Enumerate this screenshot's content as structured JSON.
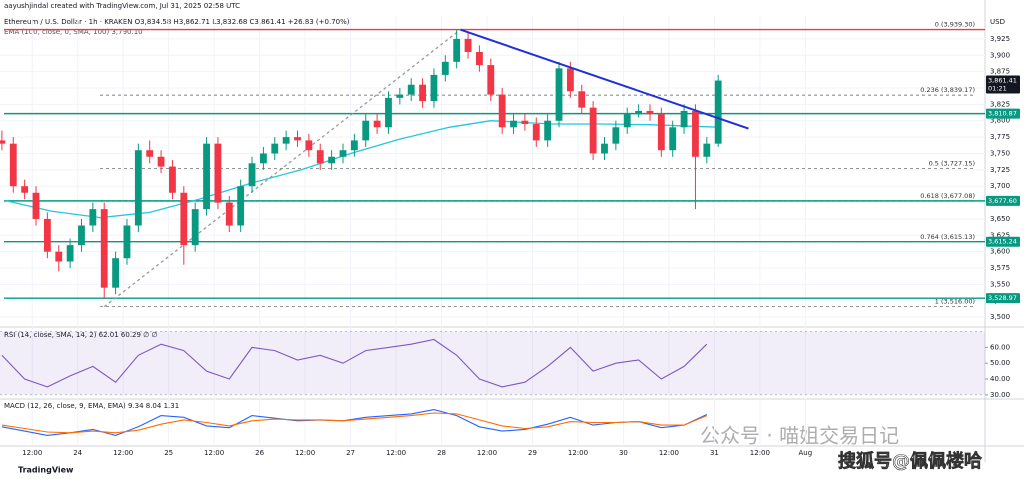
{
  "header": {
    "author_line": "aayushjindal created with TradingView.com, Jul 31, 2025 02:58 UTC",
    "symbol_line": "Ethereum / U.S. Dollar · 1h · KRAKEN  O3,834.58 H3,862.71 L3,832.68 C3,861.41 +26.83 (+0.70%)",
    "ema_line": "EMA (100, close, 0, SMA, 100)  3,790.10",
    "currency": "USD",
    "countdown": "01:21"
  },
  "chart_data": [
    {
      "type": "candlestick",
      "up_color": "#089981",
      "down_color": "#f23645",
      "x": [
        4,
        7,
        10,
        13,
        16,
        19,
        22,
        25,
        28,
        31,
        34,
        37,
        40,
        43,
        46,
        49,
        52,
        55,
        58,
        61,
        64,
        67,
        70,
        73,
        76,
        79,
        82,
        85,
        88,
        91,
        94,
        97,
        100,
        103,
        106,
        109,
        112,
        115,
        118,
        121,
        124,
        127,
        130,
        133,
        136,
        139,
        142,
        145,
        148,
        151,
        154,
        157,
        160,
        163,
        166,
        169,
        172,
        175,
        178,
        181,
        184,
        187,
        190,
        193
      ],
      "candles": [
        [
          3770,
          3785,
          3755,
          3765
        ],
        [
          3765,
          3775,
          3690,
          3700
        ],
        [
          3700,
          3710,
          3680,
          3690
        ],
        [
          3690,
          3700,
          3640,
          3650
        ],
        [
          3650,
          3660,
          3590,
          3600
        ],
        [
          3600,
          3610,
          3570,
          3585
        ],
        [
          3585,
          3620,
          3575,
          3610
        ],
        [
          3610,
          3650,
          3600,
          3640
        ],
        [
          3640,
          3675,
          3630,
          3665
        ],
        [
          3665,
          3675,
          3528,
          3545
        ],
        [
          3545,
          3600,
          3535,
          3590
        ],
        [
          3590,
          3650,
          3580,
          3640
        ],
        [
          3640,
          3765,
          3630,
          3755
        ],
        [
          3755,
          3770,
          3735,
          3745
        ],
        [
          3745,
          3755,
          3720,
          3730
        ],
        [
          3730,
          3740,
          3680,
          3690
        ],
        [
          3690,
          3700,
          3580,
          3610
        ],
        [
          3610,
          3675,
          3600,
          3665
        ],
        [
          3665,
          3775,
          3655,
          3765
        ],
        [
          3765,
          3775,
          3665,
          3675
        ],
        [
          3675,
          3685,
          3630,
          3640
        ],
        [
          3640,
          3710,
          3630,
          3700
        ],
        [
          3700,
          3745,
          3690,
          3735
        ],
        [
          3735,
          3760,
          3725,
          3750
        ],
        [
          3750,
          3775,
          3740,
          3765
        ],
        [
          3765,
          3785,
          3755,
          3775
        ],
        [
          3775,
          3785,
          3760,
          3770
        ],
        [
          3770,
          3780,
          3745,
          3755
        ],
        [
          3755,
          3765,
          3725,
          3735
        ],
        [
          3735,
          3755,
          3725,
          3745
        ],
        [
          3745,
          3765,
          3735,
          3755
        ],
        [
          3755,
          3780,
          3745,
          3770
        ],
        [
          3770,
          3810,
          3760,
          3800
        ],
        [
          3800,
          3810,
          3780,
          3790
        ],
        [
          3790,
          3845,
          3780,
          3835
        ],
        [
          3835,
          3850,
          3825,
          3840
        ],
        [
          3840,
          3865,
          3830,
          3855
        ],
        [
          3855,
          3865,
          3820,
          3830
        ],
        [
          3830,
          3880,
          3820,
          3870
        ],
        [
          3870,
          3900,
          3860,
          3890
        ],
        [
          3890,
          3939.3,
          3880,
          3925
        ],
        [
          3925,
          3935,
          3895,
          3905
        ],
        [
          3905,
          3915,
          3875,
          3885
        ],
        [
          3885,
          3895,
          3830,
          3840
        ],
        [
          3840,
          3850,
          3780,
          3790
        ],
        [
          3790,
          3810,
          3780,
          3800
        ],
        [
          3800,
          3810,
          3785,
          3795
        ],
        [
          3795,
          3805,
          3760,
          3770
        ],
        [
          3770,
          3810,
          3760,
          3800
        ],
        [
          3800,
          3890,
          3790,
          3880
        ],
        [
          3880,
          3890,
          3835,
          3845
        ],
        [
          3845,
          3855,
          3810,
          3820
        ],
        [
          3820,
          3830,
          3740,
          3750
        ],
        [
          3750,
          3775,
          3740,
          3765
        ],
        [
          3765,
          3800,
          3755,
          3790
        ],
        [
          3790,
          3820,
          3780,
          3810
        ],
        [
          3810,
          3825,
          3805,
          3815
        ],
        [
          3815,
          3825,
          3800,
          3810
        ],
        [
          3810,
          3820,
          3745,
          3755
        ],
        [
          3755,
          3800,
          3745,
          3790
        ],
        [
          3790,
          3825,
          3780,
          3815
        ],
        [
          3815,
          3825,
          3665,
          3745
        ],
        [
          3745,
          3775,
          3735,
          3765
        ],
        [
          3765,
          3870,
          3760,
          3861.41
        ]
      ],
      "ema": {
        "color": "#26c6da",
        "x": [
          5,
          17,
          30,
          43,
          56,
          70,
          83,
          96,
          109,
          122,
          133,
          149,
          162,
          175,
          193
        ],
        "values": [
          3678,
          3662,
          3652,
          3660,
          3680,
          3705,
          3725,
          3750,
          3772,
          3790,
          3800,
          3795,
          3795,
          3794,
          3790.1
        ]
      },
      "trendline": {
        "color": "#2130d8",
        "x": [
          125,
          201
        ],
        "values": [
          3939,
          3788
        ]
      },
      "fib_connector": {
        "color": "#999999",
        "x": [
          31,
          125
        ],
        "values": [
          3516,
          3939.3
        ]
      },
      "levels": [
        {
          "value": 3939.3,
          "color": "#f23645"
        },
        {
          "value": 3810.87,
          "color": "#089981"
        },
        {
          "value": 3677.6,
          "color": "#089981"
        },
        {
          "value": 3615.24,
          "color": "#089981"
        },
        {
          "value": 3528.97,
          "color": "#089981"
        }
      ],
      "fib": [
        {
          "value": 3939.3,
          "label": "0 (3,939.30)"
        },
        {
          "value": 3839.17,
          "label": "0.236 (3,839.17)"
        },
        {
          "value": 3727.15,
          "label": "0.5 (3,727.15)"
        },
        {
          "value": 3677.08,
          "label": "0.618 (3,677.08)"
        },
        {
          "value": 3615.13,
          "label": "0.764 (3,615.13)"
        },
        {
          "value": 3516,
          "label": "1 (3,516.00)"
        }
      ],
      "price_tags": [
        {
          "value": 3861.41,
          "label": "3,861.41",
          "color": "#131722"
        },
        {
          "value": 3810.87,
          "label": "3,810.87",
          "color": "#089981"
        },
        {
          "value": 3677.6,
          "label": "3,677.60",
          "color": "#089981"
        },
        {
          "value": 3615.24,
          "label": "3,615.24",
          "color": "#089981"
        },
        {
          "value": 3528.97,
          "label": "3,528.97",
          "color": "#089981"
        }
      ],
      "ylim": [
        3488,
        3960
      ],
      "yticks": [
        {
          "value": 3500,
          "label": "3,500"
        },
        {
          "value": 3525,
          "label": "3,525"
        },
        {
          "value": 3550,
          "label": "3,550"
        },
        {
          "value": 3575,
          "label": "3,575"
        },
        {
          "value": 3600,
          "label": "3,600"
        },
        {
          "value": 3625,
          "label": "3,625"
        },
        {
          "value": 3650,
          "label": "3,650"
        },
        {
          "value": 3675,
          "label": "3,675"
        },
        {
          "value": 3700,
          "label": "3,700"
        },
        {
          "value": 3725,
          "label": "3,725"
        },
        {
          "value": 3750,
          "label": "3,750"
        },
        {
          "value": 3775,
          "label": "3,775"
        },
        {
          "value": 3800,
          "label": "3,800"
        },
        {
          "value": 3825,
          "label": "3,825"
        },
        {
          "value": 3850,
          "label": "3,850"
        },
        {
          "value": 3875,
          "label": "3,875"
        },
        {
          "value": 3900,
          "label": "3,900"
        },
        {
          "value": 3925,
          "label": "3,925"
        }
      ],
      "xlim": [
        3.5,
        263.4
      ],
      "xticks": [
        {
          "value": 12,
          "label": "12:00"
        },
        {
          "value": 24,
          "label": "24"
        },
        {
          "value": 36,
          "label": "12:00"
        },
        {
          "value": 48,
          "label": "25"
        },
        {
          "value": 60,
          "label": "12:00"
        },
        {
          "value": 72,
          "label": "26"
        },
        {
          "value": 84,
          "label": "12:00"
        },
        {
          "value": 96,
          "label": "27"
        },
        {
          "value": 108,
          "label": "12:00"
        },
        {
          "value": 120,
          "label": "28"
        },
        {
          "value": 132,
          "label": "12:00"
        },
        {
          "value": 144,
          "label": "29"
        },
        {
          "value": 156,
          "label": "12:00"
        },
        {
          "value": 168,
          "label": "30"
        },
        {
          "value": 180,
          "label": "12:00"
        },
        {
          "value": 192,
          "label": "31"
        },
        {
          "value": 204,
          "label": "12:00"
        },
        {
          "value": 216,
          "label": "Aug"
        }
      ]
    },
    {
      "type": "line",
      "title": "RSI (14, close, SMA, 14, 2)  62.01  60.29  ∅  ∅",
      "band": [
        30,
        70
      ],
      "band_color": "#7e57c2",
      "x": [
        4,
        10,
        16,
        22,
        28,
        34,
        40,
        46,
        52,
        58,
        64,
        70,
        76,
        82,
        88,
        94,
        100,
        106,
        112,
        118,
        124,
        130,
        136,
        142,
        148,
        154,
        160,
        166,
        172,
        178,
        184,
        190
      ],
      "series": [
        {
          "color": "#7e57c2",
          "values": [
            55,
            40,
            35,
            42,
            48,
            38,
            55,
            62,
            58,
            45,
            40,
            60,
            58,
            52,
            55,
            50,
            58,
            60,
            62,
            65,
            55,
            40,
            35,
            38,
            48,
            60,
            45,
            50,
            52,
            40,
            48,
            62.01
          ]
        }
      ],
      "ylim": [
        28,
        71
      ],
      "yticks": [
        {
          "value": 30,
          "label": "30.00"
        },
        {
          "value": 40,
          "label": "40.00"
        },
        {
          "value": 50,
          "label": "50.00"
        },
        {
          "value": 60,
          "label": "60.00"
        }
      ]
    },
    {
      "type": "line",
      "title": "MACD (12, 26, close, 9, EMA, EMA)  9.34  8.04  1.31",
      "x": [
        4,
        10,
        16,
        22,
        28,
        34,
        40,
        46,
        52,
        58,
        64,
        70,
        76,
        82,
        88,
        94,
        100,
        106,
        112,
        118,
        124,
        130,
        136,
        142,
        148,
        154,
        160,
        166,
        172,
        178,
        184,
        190
      ],
      "series": [
        {
          "color": "#2962ff",
          "values": [
            -5,
            -10,
            -15,
            -12,
            -8,
            -15,
            -5,
            8,
            6,
            -4,
            -6,
            8,
            5,
            2,
            3,
            2,
            6,
            8,
            10,
            15,
            8,
            -5,
            -10,
            -8,
            -2,
            6,
            -3,
            0,
            1,
            -6,
            -3,
            9.34
          ]
        },
        {
          "color": "#ff6d00",
          "values": [
            -3,
            -7,
            -11,
            -12,
            -10,
            -12,
            -9,
            -2,
            3,
            0,
            -4,
            2,
            4,
            3,
            3,
            2,
            4,
            6,
            8,
            11,
            10,
            3,
            -4,
            -7,
            -5,
            1,
            0,
            0,
            1,
            -3,
            -3,
            8.04
          ]
        }
      ],
      "ylim": [
        -25,
        25
      ]
    }
  ],
  "watermark": {
    "line1": "公众号 · 喵姐交易日记",
    "line2": "搜狐号@佩佩楼哈"
  },
  "footer": {
    "brand": "TradingView"
  }
}
